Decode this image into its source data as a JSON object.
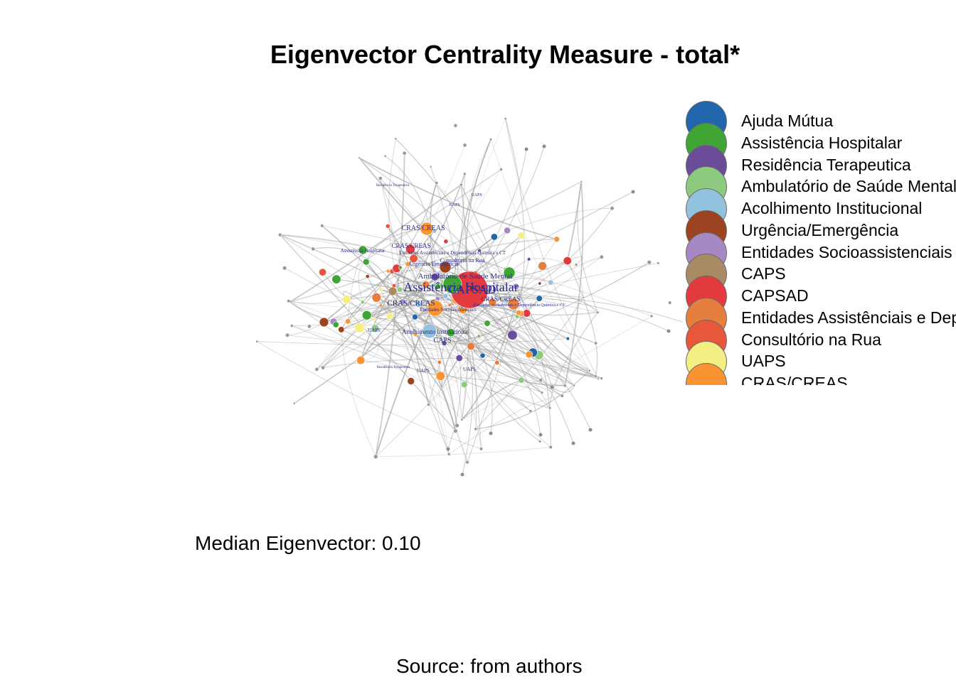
{
  "title": "Eigenvector Centrality Measure - total*",
  "legend": [
    {
      "label": "Ajuda Mútua",
      "color": "#2166AC"
    },
    {
      "label": "Assistência Hospitalar",
      "color": "#3FA535"
    },
    {
      "label": "Residência Terapeutica",
      "color": "#6B4C9A"
    },
    {
      "label": "Ambulatório de Saúde Mental",
      "color": "#8DC97F"
    },
    {
      "label": "Acolhimento Institucional",
      "color": "#92C2DD"
    },
    {
      "label": "Urgência/Emergência",
      "color": "#9C4422"
    },
    {
      "label": "Entidades Socioassistenciais",
      "color": "#A588C4"
    },
    {
      "label": "CAPS",
      "color": "#A88A63"
    },
    {
      "label": "CAPSAD",
      "color": "#E23A3F"
    },
    {
      "label": "Entidades Assistênciais e Dependência Química e CT",
      "color": "#E67E3D"
    },
    {
      "label": "Consultório na Rua",
      "color": "#E8573A"
    },
    {
      "label": "UAPS",
      "color": "#F4EF82"
    },
    {
      "label": "CRAS/CREAS",
      "color": "#FA9433"
    }
  ],
  "network": {
    "labels": [
      "Assistência Hospitalar",
      "CAPSAD",
      "Ambulatório de Saúde Mental",
      "CRAS/CREAS",
      "CRAS/CREAS",
      "CRAS/CREAS",
      "Acolhimento Institucional",
      "Entidades Socioassistenciais",
      "Consultório na Rua",
      "Urgência/Emergência",
      "CAPS",
      "UAPS",
      "UAPS",
      "UAPS",
      "Residência Terapeutica",
      "Residência Terapeutica",
      "Assistência Hospitalar",
      "Entidades Assistênciais e Dependência Química e CT",
      "Entidades Assistênciais e Dependência Química e CT",
      "CRAS/CREAS",
      "UAPS",
      "UAPS"
    ]
  },
  "median_text": "Median Eigenvector: 0.10",
  "source_text": "Source: from authors"
}
